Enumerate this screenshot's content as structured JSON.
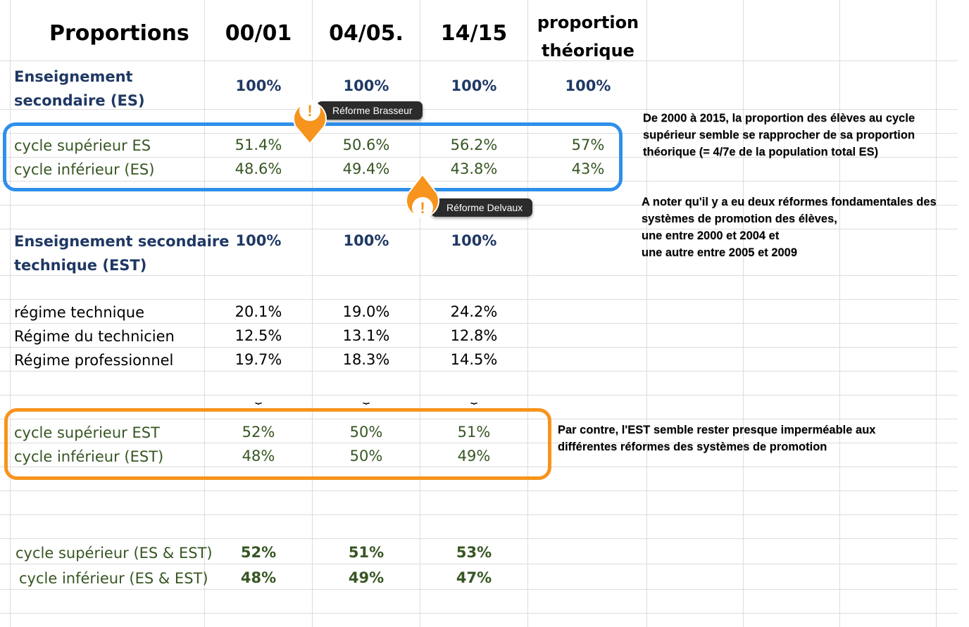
{
  "header": {
    "title": "Proportions",
    "col1": "00/01",
    "col2": "04/05.",
    "col3": "14/15",
    "col4_line1": "proportion",
    "col4_line2": "théorique"
  },
  "es": {
    "label_line1": "Enseignement",
    "label_line2": "secondaire (ES)",
    "values": [
      "100%",
      "100%",
      "100%",
      "100%"
    ],
    "sup": {
      "label": "cycle supérieur ES",
      "values": [
        "51.4%",
        "50.6%",
        "56.2%",
        "57%"
      ]
    },
    "inf": {
      "label": "cycle inférieur (ES)",
      "values": [
        "48.6%",
        "49.4%",
        "43.8%",
        "43%"
      ]
    }
  },
  "est": {
    "label_line1": "Enseignement secondaire",
    "label_line2": "technique (EST)",
    "values": [
      "100%",
      "100%",
      "100%"
    ],
    "regimes": [
      {
        "label": "régime technique",
        "values": [
          "20.1%",
          "19.0%",
          "24.2%"
        ]
      },
      {
        "label": "Régime du technicien",
        "values": [
          "12.5%",
          "13.1%",
          "12.8%"
        ]
      },
      {
        "label": "Régime professionnel",
        "values": [
          "19.7%",
          "18.3%",
          "14.5%"
        ]
      }
    ],
    "brace": "⏟",
    "sup": {
      "label": "cycle supérieur EST",
      "values": [
        "52%",
        "50%",
        "51%"
      ]
    },
    "inf": {
      "label": "cycle inférieur (EST)",
      "values": [
        "48%",
        "50%",
        "49%"
      ]
    }
  },
  "total": {
    "sup": {
      "label": "cycle supérieur (ES & EST)",
      "values": [
        "52%",
        "51%",
        "53%"
      ]
    },
    "inf": {
      "label": "cycle inférieur (ES & EST)",
      "values": [
        "48%",
        "49%",
        "47%"
      ]
    }
  },
  "annotations": {
    "brasseur": "Réforme Brasseur",
    "delvaux": "Réforme  Delvaux",
    "pin_glyph": "!",
    "note1": [
      "De 2000 à 2015, la proportion des élèves au cycle",
      "supérieur semble se rapprocher de sa proportion",
      "théorique (= 4/7e de la population total ES)"
    ],
    "note2": [
      "A noter qu'il y a eu deux réformes fondamentales des",
      "systèmes de promotion des élèves,",
      "une entre 2000 et 2004  et",
      "une autre entre 2005 et 2009"
    ],
    "note3": [
      "Par contre, l'EST semble rester presque imperméable aux",
      "différentes réformes des systèmes de promotion"
    ]
  },
  "colors": {
    "navy": "#1f3864",
    "green": "#375623",
    "blue_box": "#2f8fea",
    "orange_box": "#f7941d"
  }
}
